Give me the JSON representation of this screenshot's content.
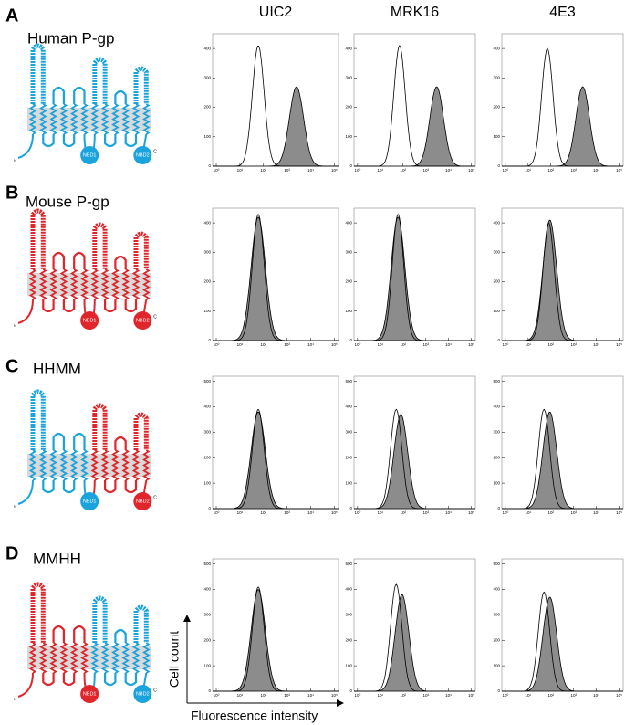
{
  "chart_data": {
    "type": "histogram-grid",
    "columns": [
      "UIC2",
      "MRK16",
      "4E3"
    ],
    "xlim": [
      0.7,
      150000
    ],
    "xticks": [
      {
        "value": 1,
        "label": "10⁰"
      },
      {
        "value": 10,
        "label": "10¹"
      },
      {
        "value": 100,
        "label": "10²"
      },
      {
        "value": 1000,
        "label": "10³"
      },
      {
        "value": 10000,
        "label": "10⁴"
      },
      {
        "value": 100000,
        "label": "10⁵"
      }
    ],
    "x_label": "Fluorescence intensity",
    "y_label": "Cell count",
    "nbd1": "NBD1",
    "nbd2": "NBD2",
    "n_term": "N",
    "c_term": "C",
    "human_color": "#1aa3dd",
    "mouse_color": "#e0262b",
    "rows": [
      {
        "letter": "A",
        "title": "Human P-gp",
        "halves": [
          "human",
          "human"
        ],
        "ylim": [
          0,
          450
        ],
        "yticks": [
          0,
          100,
          200,
          300,
          400
        ],
        "panels": [
          {
            "control": {
              "peak_x": 60,
              "peak_y": 410
            },
            "sample": {
              "peak_x": 2500,
              "peak_y": 270
            }
          },
          {
            "control": {
              "peak_x": 70,
              "peak_y": 410
            },
            "sample": {
              "peak_x": 3000,
              "peak_y": 270
            }
          },
          {
            "control": {
              "peak_x": 70,
              "peak_y": 400
            },
            "sample": {
              "peak_x": 2500,
              "peak_y": 270
            }
          }
        ]
      },
      {
        "letter": "B",
        "title": "Mouse P-gp",
        "halves": [
          "mouse",
          "mouse"
        ],
        "ylim": [
          0,
          450
        ],
        "yticks": [
          0,
          100,
          200,
          300,
          400
        ],
        "panels": [
          {
            "control": {
              "peak_x": 60,
              "peak_y": 430
            },
            "sample": {
              "peak_x": 60,
              "peak_y": 420
            }
          },
          {
            "control": {
              "peak_x": 60,
              "peak_y": 430
            },
            "sample": {
              "peak_x": 60,
              "peak_y": 420
            }
          },
          {
            "control": {
              "peak_x": 80,
              "peak_y": 400
            },
            "sample": {
              "peak_x": 90,
              "peak_y": 410
            }
          }
        ]
      },
      {
        "letter": "C",
        "title": "HHMM",
        "halves": [
          "human",
          "mouse"
        ],
        "ylim": [
          0,
          520
        ],
        "yticks": [
          0,
          100,
          200,
          300,
          400,
          500
        ],
        "panels": [
          {
            "control": {
              "peak_x": 60,
              "peak_y": 390
            },
            "sample": {
              "peak_x": 60,
              "peak_y": 380
            }
          },
          {
            "control": {
              "peak_x": 50,
              "peak_y": 390
            },
            "sample": {
              "peak_x": 80,
              "peak_y": 370
            }
          },
          {
            "control": {
              "peak_x": 50,
              "peak_y": 390
            },
            "sample": {
              "peak_x": 90,
              "peak_y": 380
            }
          }
        ]
      },
      {
        "letter": "D",
        "title": "MMHH",
        "halves": [
          "mouse",
          "human"
        ],
        "ylim": [
          0,
          520
        ],
        "yticks": [
          0,
          100,
          200,
          300,
          400,
          500
        ],
        "panels": [
          {
            "control": {
              "peak_x": 60,
              "peak_y": 410
            },
            "sample": {
              "peak_x": 60,
              "peak_y": 400
            }
          },
          {
            "control": {
              "peak_x": 50,
              "peak_y": 420
            },
            "sample": {
              "peak_x": 90,
              "peak_y": 380
            }
          },
          {
            "control": {
              "peak_x": 50,
              "peak_y": 390
            },
            "sample": {
              "peak_x": 90,
              "peak_y": 370
            }
          }
        ]
      }
    ]
  }
}
